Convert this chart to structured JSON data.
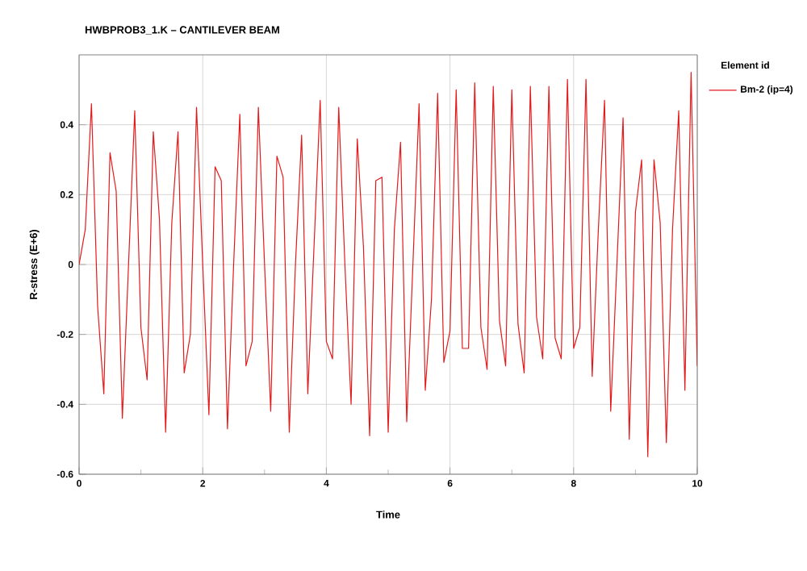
{
  "chart_data": {
    "type": "line",
    "title": "HWBPROB3_1.K – CANTILEVER BEAM",
    "xlabel": "Time",
    "ylabel": "R-stress (E+6)",
    "legend_title": "Element id",
    "xlim": [
      0,
      10
    ],
    "ylim": [
      -0.6,
      0.6
    ],
    "xticks": [
      0,
      {
        "value": 1,
        "label": null
      },
      2,
      {
        "value": 3,
        "label": null
      },
      4,
      {
        "value": 5,
        "label": null
      },
      6,
      {
        "value": 7,
        "label": null
      },
      8,
      {
        "value": 9,
        "label": null
      },
      10
    ],
    "yticks": [
      -0.6,
      -0.4,
      -0.2,
      0,
      0.2,
      0.4
    ],
    "grid": true,
    "legend": "top right",
    "marker": "none",
    "line_style": "solid",
    "x": [
      0,
      0.1,
      0.2,
      0.3,
      0.4,
      0.5,
      0.6,
      0.7,
      0.8,
      0.9,
      1.0,
      1.1,
      1.2,
      1.3,
      1.4,
      1.5,
      1.6,
      1.7,
      1.8,
      1.9,
      2.0,
      2.1,
      2.2,
      2.3,
      2.4,
      2.5,
      2.6,
      2.7,
      2.8,
      2.9,
      3.0,
      3.1,
      3.2,
      3.3,
      3.4,
      3.5,
      3.6,
      3.7,
      3.8,
      3.9,
      4.0,
      4.1,
      4.2,
      4.3,
      4.4,
      4.5,
      4.6,
      4.7,
      4.8,
      4.9,
      5.0,
      5.1,
      5.2,
      5.3,
      5.4,
      5.5,
      5.6,
      5.7,
      5.8,
      5.9,
      6.0,
      6.1,
      6.2,
      6.3,
      6.4,
      6.5,
      6.6,
      6.7,
      6.8,
      6.9,
      7.0,
      7.1,
      7.2,
      7.3,
      7.4,
      7.5,
      7.6,
      7.7,
      7.8,
      7.9,
      8.0,
      8.1,
      8.2,
      8.3,
      8.4,
      8.5,
      8.6,
      8.7,
      8.8,
      8.9,
      9.0,
      9.1,
      9.2,
      9.3,
      9.4,
      9.5,
      9.6,
      9.7,
      9.8,
      9.9,
      10.0
    ],
    "series": [
      {
        "name": "Bm-2 (ip=4)",
        "color": "#e31a1c",
        "values": [
          0,
          0.1,
          0.46,
          -0.12,
          -0.37,
          0.32,
          0.21,
          -0.44,
          0.0,
          0.44,
          -0.18,
          -0.33,
          0.38,
          0.13,
          -0.48,
          0.12,
          0.38,
          -0.31,
          -0.2,
          0.45,
          0.0,
          -0.43,
          0.28,
          0.24,
          -0.47,
          0.0,
          0.43,
          -0.29,
          -0.22,
          0.45,
          0.0,
          -0.42,
          0.31,
          0.25,
          -0.48,
          0.0,
          0.37,
          -0.37,
          0.05,
          0.47,
          -0.22,
          -0.27,
          0.45,
          0.0,
          -0.4,
          0.36,
          0.05,
          -0.49,
          0.24,
          0.25,
          -0.48,
          0.1,
          0.35,
          -0.45,
          0.0,
          0.46,
          -0.36,
          -0.1,
          0.49,
          -0.28,
          -0.19,
          0.5,
          -0.24,
          -0.24,
          0.52,
          -0.18,
          -0.3,
          0.51,
          -0.16,
          -0.29,
          0.5,
          -0.17,
          -0.31,
          0.51,
          -0.15,
          -0.27,
          0.51,
          -0.21,
          -0.27,
          0.53,
          -0.24,
          -0.18,
          0.53,
          -0.32,
          0.1,
          0.47,
          -0.42,
          0.0,
          0.42,
          -0.5,
          0.15,
          0.3,
          -0.55,
          0.3,
          0.12,
          -0.51,
          0.1,
          0.44,
          -0.36,
          0.55,
          -0.29
        ]
      }
    ]
  }
}
